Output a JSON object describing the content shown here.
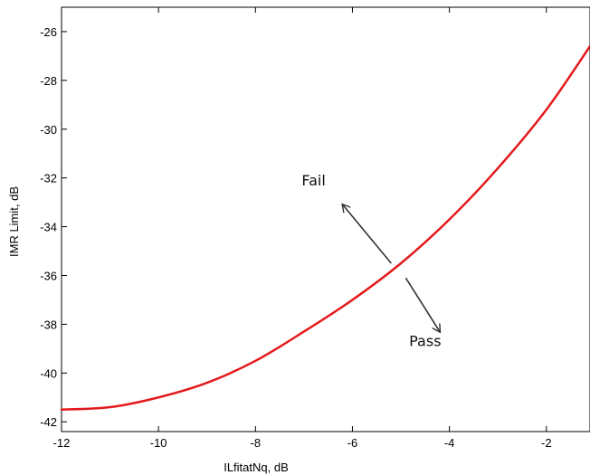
{
  "chart_data": {
    "type": "line",
    "title": "",
    "xlabel": "ILfitatNq, dB",
    "ylabel": "IMR Limit, dB",
    "xlim": [
      -12,
      -1.1
    ],
    "ylim": [
      -42.4,
      -25
    ],
    "xticks": [
      -12,
      -10,
      -8,
      -6,
      -4,
      -2
    ],
    "yticks": [
      -42,
      -40,
      -38,
      -36,
      -34,
      -32,
      -30,
      -28,
      -26
    ],
    "grid": false,
    "legend": "none",
    "series": [
      {
        "color": "#e31a1c",
        "x": [
          -12,
          -11,
          -10,
          -9,
          -8,
          -7,
          -6,
          -5,
          -4,
          -3,
          -2,
          -1.1
        ],
        "y": [
          -41.5,
          -41.4,
          -41.0,
          -40.4,
          -39.5,
          -38.3,
          -37.0,
          -35.5,
          -33.7,
          -31.6,
          -29.2,
          -26.6
        ]
      }
    ],
    "annotations": [
      {
        "text": "Fail",
        "x": -6.8,
        "y": -32.3,
        "arrow_from": [
          -5.2,
          -35.5
        ],
        "arrow_to": [
          -6.2,
          -33.1
        ]
      },
      {
        "text": "Pass",
        "x": -4.5,
        "y": -38.9,
        "arrow_from": [
          -4.9,
          -36.1
        ],
        "arrow_to": [
          -4.2,
          -38.3
        ]
      }
    ]
  }
}
